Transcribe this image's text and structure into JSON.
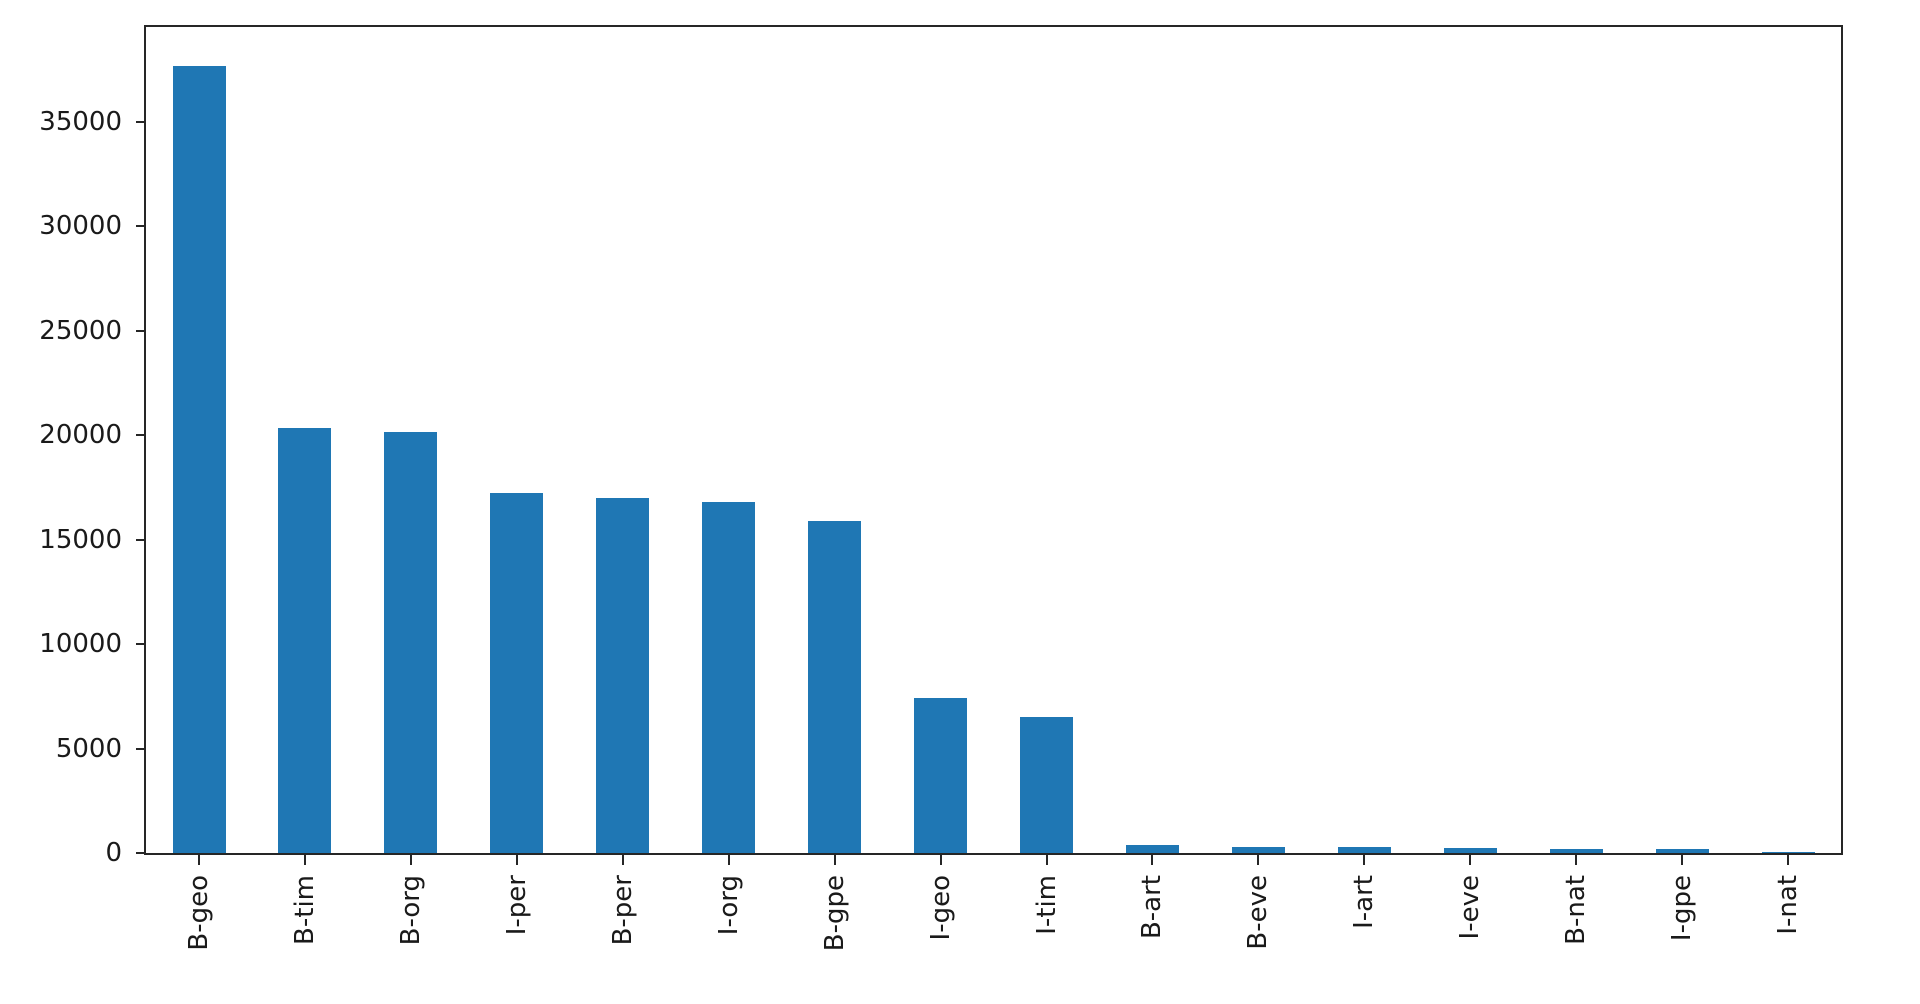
{
  "chart_data": {
    "type": "bar",
    "categories": [
      "B-geo",
      "B-tim",
      "B-org",
      "I-per",
      "B-per",
      "I-org",
      "B-gpe",
      "I-geo",
      "I-tim",
      "B-art",
      "B-eve",
      "I-art",
      "I-eve",
      "B-nat",
      "I-gpe",
      "I-nat"
    ],
    "values": [
      37644,
      20333,
      20143,
      17251,
      16990,
      16784,
      15870,
      7414,
      6528,
      402,
      308,
      297,
      253,
      201,
      198,
      51
    ],
    "yticks": [
      0,
      5000,
      10000,
      15000,
      20000,
      25000,
      30000,
      35000
    ],
    "ytick_labels": [
      "0",
      "5000",
      "10000",
      "15000",
      "20000",
      "25000",
      "30000",
      "35000"
    ],
    "ylim": [
      0,
      39526
    ],
    "bar_color": "#1f77b4",
    "axis_color": "#262626",
    "text_color": "#1a1a1a",
    "grid": false,
    "legend": null,
    "x_tick_label_rotation": 90,
    "bar_relative_width": 0.5
  }
}
